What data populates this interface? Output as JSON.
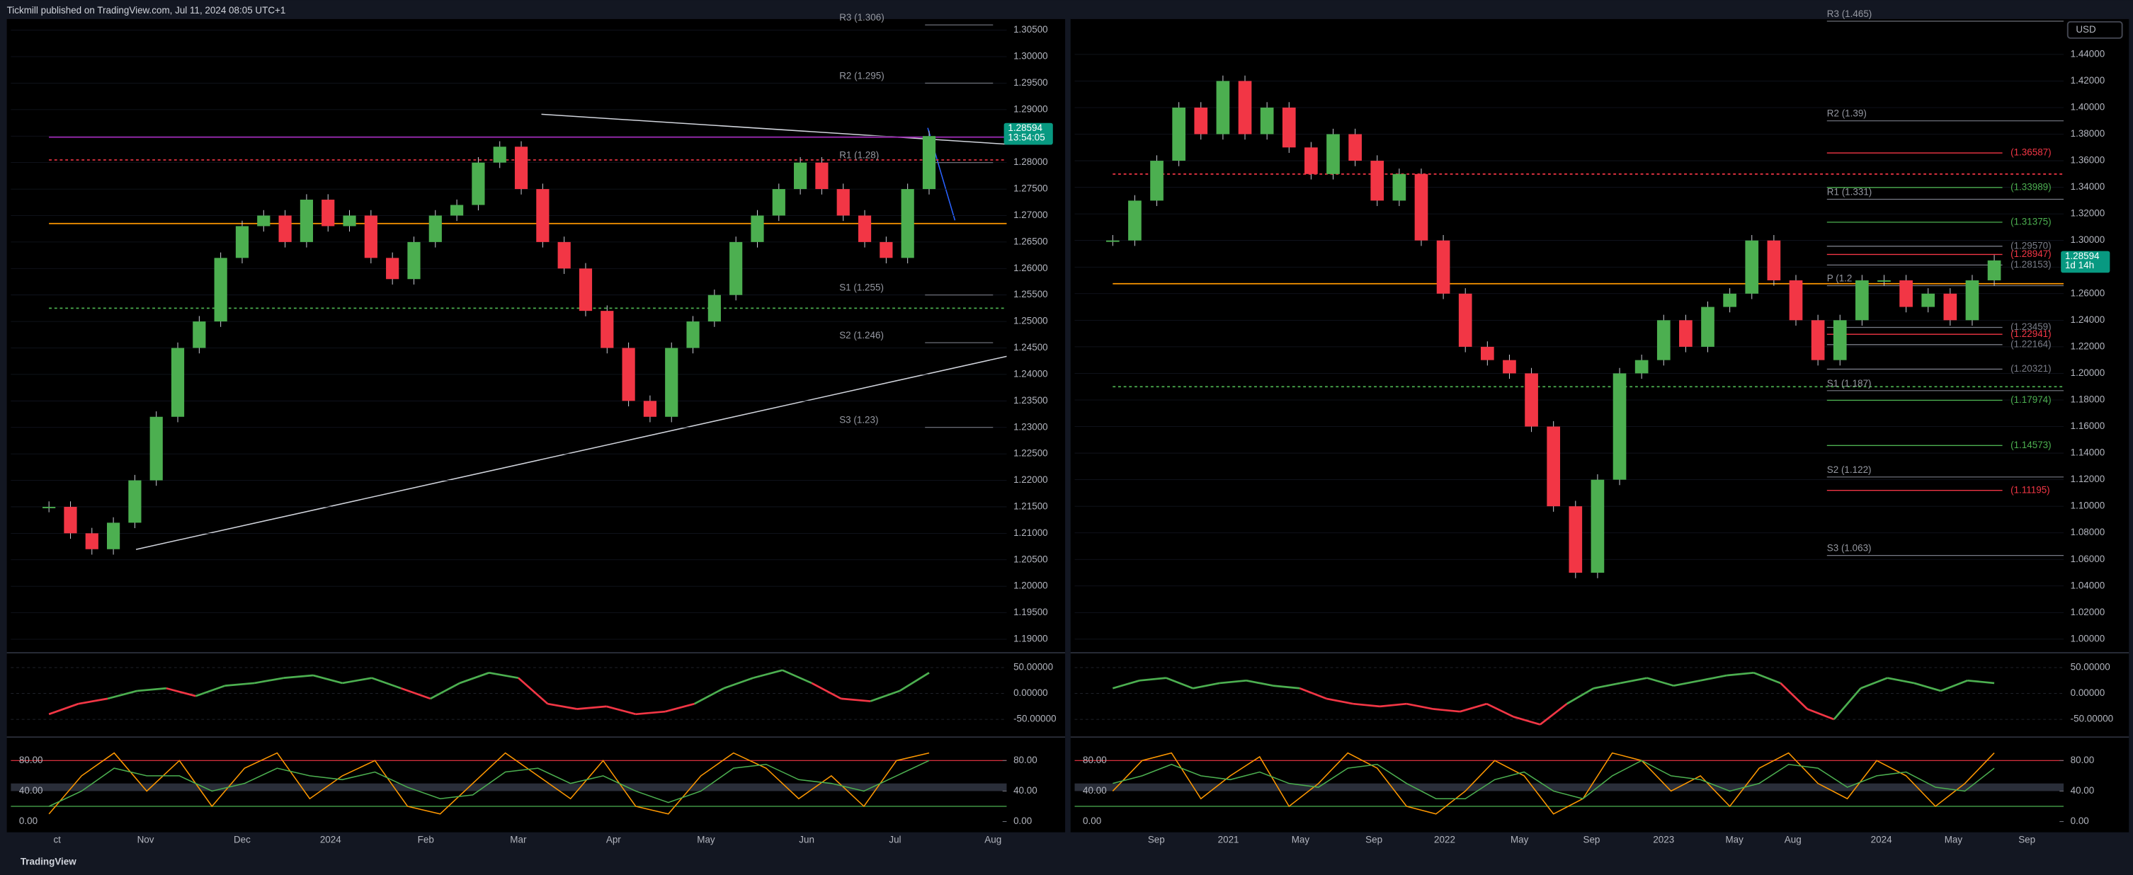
{
  "header": {
    "text": "Tickmill published on TradingView.com, Jul 11, 2024 08:05 UTC+1"
  },
  "footer": {
    "text": "TradingView"
  },
  "currency": "USD",
  "panels": [
    {
      "ylim": [
        1.1877,
        1.3071
      ],
      "yticks": [
        {
          "value": 1.305,
          "label": "1.30500"
        },
        {
          "value": 1.3,
          "label": "1.30000"
        },
        {
          "value": 1.295,
          "label": "1.29500"
        },
        {
          "value": 1.29,
          "label": "1.29000"
        },
        {
          "value": 1.285,
          "label": "1.28500"
        },
        {
          "value": 1.28,
          "label": "1.28000"
        },
        {
          "value": 1.275,
          "label": "1.27500"
        },
        {
          "value": 1.27,
          "label": "1.27000"
        },
        {
          "value": 1.265,
          "label": "1.26500"
        },
        {
          "value": 1.26,
          "label": "1.26000"
        },
        {
          "value": 1.255,
          "label": "1.25500"
        },
        {
          "value": 1.25,
          "label": "1.25000"
        },
        {
          "value": 1.245,
          "label": "1.24500"
        },
        {
          "value": 1.24,
          "label": "1.24000"
        },
        {
          "value": 1.235,
          "label": "1.23500"
        },
        {
          "value": 1.23,
          "label": "1.23000"
        },
        {
          "value": 1.225,
          "label": "1.22500"
        },
        {
          "value": 1.22,
          "label": "1.22000"
        },
        {
          "value": 1.215,
          "label": "1.21500"
        },
        {
          "value": 1.21,
          "label": "1.21000"
        },
        {
          "value": 1.205,
          "label": "1.20500"
        },
        {
          "value": 1.2,
          "label": "1.20000"
        },
        {
          "value": 1.195,
          "label": "1.19500"
        },
        {
          "value": 1.19,
          "label": "1.19000"
        }
      ],
      "time_labels": [
        "ct",
        "Nov",
        "Dec",
        "2024",
        "Feb",
        "Mar",
        "Apr",
        "May",
        "Jun",
        "Jul",
        "Aug"
      ],
      "pivots": [
        {
          "value": 1.306,
          "label": "R3 (1.306)"
        },
        {
          "value": 1.295,
          "label": "R2 (1.295)"
        },
        {
          "value": 1.28,
          "label": "R1 (1.28)"
        },
        {
          "value": 1.255,
          "label": "S1 (1.255)"
        },
        {
          "value": 1.246,
          "label": "S2 (1.246)"
        },
        {
          "value": 1.23,
          "label": "S3 (1.23)"
        }
      ],
      "levels": [
        {
          "value": 1.2805,
          "color": "#f23645",
          "dash": true
        },
        {
          "value": 1.2685,
          "color": "#ff9800",
          "dash": false
        },
        {
          "value": 1.2525,
          "color": "#4caf50",
          "dash": true
        },
        {
          "value": 1.2848,
          "color": "#9c27b0",
          "dash": false
        }
      ],
      "price_tag": {
        "value": 1.28594,
        "time": "13:54:05"
      },
      "closes": [
        1.215,
        1.21,
        1.207,
        1.212,
        1.22,
        1.232,
        1.245,
        1.25,
        1.262,
        1.268,
        1.27,
        1.265,
        1.273,
        1.268,
        1.27,
        1.262,
        1.258,
        1.265,
        1.27,
        1.272,
        1.28,
        1.283,
        1.275,
        1.265,
        1.26,
        1.252,
        1.245,
        1.235,
        1.232,
        1.245,
        1.25,
        1.255,
        1.265,
        1.27,
        1.275,
        1.28,
        1.275,
        1.27,
        1.265,
        1.262,
        1.275,
        1.285
      ],
      "momentum": {
        "ylim": [
          -79,
          76
        ],
        "yticks": [
          {
            "value": 50,
            "label": "50.00000"
          },
          {
            "value": 0,
            "label": "0.00000"
          },
          {
            "value": -50,
            "label": "-50.00000"
          }
        ],
        "values": [
          -40,
          -20,
          -10,
          5,
          10,
          -5,
          15,
          20,
          30,
          35,
          20,
          30,
          10,
          -10,
          20,
          40,
          30,
          -20,
          -30,
          -25,
          -40,
          -35,
          -20,
          10,
          30,
          45,
          20,
          -10,
          -15,
          5,
          40
        ]
      },
      "stoch": {
        "ylim": [
          -14,
          109
        ],
        "yticks": [
          {
            "value": 80,
            "label": "80.00"
          },
          {
            "value": 40,
            "label": "40.00"
          },
          {
            "value": 0,
            "label": "0.00"
          }
        ],
        "k": [
          10,
          60,
          90,
          40,
          80,
          20,
          70,
          90,
          30,
          60,
          80,
          20,
          10,
          50,
          90,
          60,
          30,
          80,
          20,
          10,
          60,
          90,
          70,
          30,
          60,
          20,
          80,
          90
        ],
        "d": [
          20,
          40,
          70,
          60,
          60,
          40,
          50,
          70,
          60,
          55,
          65,
          45,
          30,
          35,
          65,
          70,
          50,
          60,
          40,
          25,
          40,
          70,
          75,
          55,
          50,
          40,
          60,
          80
        ]
      }
    },
    {
      "ylim": [
        0.9908,
        1.4666
      ],
      "yticks": [
        {
          "value": 1.44,
          "label": "1.44000"
        },
        {
          "value": 1.42,
          "label": "1.42000"
        },
        {
          "value": 1.4,
          "label": "1.40000"
        },
        {
          "value": 1.38,
          "label": "1.38000"
        },
        {
          "value": 1.36,
          "label": "1.36000"
        },
        {
          "value": 1.34,
          "label": "1.34000"
        },
        {
          "value": 1.32,
          "label": "1.32000"
        },
        {
          "value": 1.3,
          "label": "1.30000"
        },
        {
          "value": 1.28,
          "label": "1.28000"
        },
        {
          "value": 1.26,
          "label": "1.26000"
        },
        {
          "value": 1.24,
          "label": "1.24000"
        },
        {
          "value": 1.22,
          "label": "1.22000"
        },
        {
          "value": 1.2,
          "label": "1.20000"
        },
        {
          "value": 1.18,
          "label": "1.18000"
        },
        {
          "value": 1.16,
          "label": "1.16000"
        },
        {
          "value": 1.14,
          "label": "1.14000"
        },
        {
          "value": 1.12,
          "label": "1.12000"
        },
        {
          "value": 1.1,
          "label": "1.10000"
        },
        {
          "value": 1.08,
          "label": "1.08000"
        },
        {
          "value": 1.06,
          "label": "1.06000"
        },
        {
          "value": 1.04,
          "label": "1.04000"
        },
        {
          "value": 1.02,
          "label": "1.02000"
        },
        {
          "value": 1.0,
          "label": "1.00000"
        }
      ],
      "time_labels": [
        "Sep",
        "2021",
        "May",
        "Sep",
        "2022",
        "May",
        "Sep",
        "2023",
        "May",
        "Aug",
        "2024",
        "May",
        "Sep"
      ],
      "pivots": [
        {
          "value": 1.465,
          "label": "R3 (1.465)"
        },
        {
          "value": 1.39,
          "label": "R2 (1.39)"
        },
        {
          "value": 1.331,
          "label": "R1 (1.331)"
        },
        {
          "value": 1.266,
          "label": "P (1.2"
        },
        {
          "value": 1.187,
          "label": "S1 (1.187)"
        },
        {
          "value": 1.122,
          "label": "S2 (1.122)"
        },
        {
          "value": 1.063,
          "label": "S3 (1.063)"
        }
      ],
      "marked_levels": [
        {
          "value": 1.36587,
          "label": "(1.36587)",
          "color": "#f23645"
        },
        {
          "value": 1.33989,
          "label": "(1.33989)",
          "color": "#4caf50"
        },
        {
          "value": 1.31375,
          "label": "(1.31375)",
          "color": "#4caf50"
        },
        {
          "value": 1.2957,
          "label": "(1.29570)",
          "color": "#787b86"
        },
        {
          "value": 1.28947,
          "label": "(1.28947)",
          "color": "#f23645"
        },
        {
          "value": 1.28153,
          "label": "(1.28153)",
          "color": "#787b86"
        },
        {
          "value": 1.23459,
          "label": "(1.23459)",
          "color": "#787b86"
        },
        {
          "value": 1.22941,
          "label": "(1.22941)",
          "color": "#f23645"
        },
        {
          "value": 1.22164,
          "label": "(1.22164)",
          "color": "#787b86"
        },
        {
          "value": 1.20321,
          "label": "(1.20321)",
          "color": "#787b86"
        },
        {
          "value": 1.17974,
          "label": "(1.17974)",
          "color": "#4caf50"
        },
        {
          "value": 1.14573,
          "label": "(1.14573)",
          "color": "#4caf50"
        },
        {
          "value": 1.11195,
          "label": "(1.11195)",
          "color": "#f23645"
        }
      ],
      "levels": [
        {
          "value": 1.35,
          "color": "#f23645",
          "dash": true
        },
        {
          "value": 1.2675,
          "color": "#ff9800",
          "dash": false
        },
        {
          "value": 1.19,
          "color": "#4caf50",
          "dash": true
        }
      ],
      "price_tag": {
        "value": 1.28594,
        "time": "1d 14h"
      },
      "closes": [
        1.3,
        1.33,
        1.36,
        1.4,
        1.38,
        1.42,
        1.38,
        1.4,
        1.37,
        1.35,
        1.38,
        1.36,
        1.33,
        1.35,
        1.3,
        1.26,
        1.22,
        1.21,
        1.2,
        1.16,
        1.1,
        1.05,
        1.12,
        1.2,
        1.21,
        1.24,
        1.22,
        1.25,
        1.26,
        1.3,
        1.27,
        1.24,
        1.21,
        1.24,
        1.27,
        1.27,
        1.25,
        1.26,
        1.24,
        1.27,
        1.285
      ],
      "momentum": {
        "ylim": [
          -79,
          76
        ],
        "yticks": [
          {
            "value": 50,
            "label": "50.00000"
          },
          {
            "value": 0,
            "label": "0.00000"
          },
          {
            "value": -50,
            "label": "-50.00000"
          }
        ],
        "values": [
          10,
          25,
          30,
          10,
          20,
          25,
          15,
          10,
          -10,
          -20,
          -25,
          -20,
          -30,
          -35,
          -20,
          -45,
          -60,
          -20,
          10,
          20,
          30,
          15,
          25,
          35,
          40,
          20,
          -30,
          -50,
          10,
          30,
          20,
          5,
          25,
          20
        ]
      },
      "stoch": {
        "ylim": [
          -14,
          109
        ],
        "yticks": [
          {
            "value": 80,
            "label": "80.00"
          },
          {
            "value": 40,
            "label": "40.00"
          },
          {
            "value": 0,
            "label": "0.00"
          }
        ],
        "k": [
          40,
          80,
          90,
          30,
          60,
          85,
          20,
          50,
          90,
          70,
          20,
          10,
          40,
          80,
          60,
          10,
          30,
          90,
          80,
          40,
          60,
          20,
          70,
          90,
          50,
          30,
          80,
          60,
          20,
          50,
          90
        ],
        "d": [
          50,
          60,
          75,
          60,
          55,
          65,
          50,
          45,
          70,
          75,
          50,
          30,
          30,
          55,
          65,
          40,
          30,
          60,
          80,
          60,
          55,
          40,
          50,
          75,
          70,
          45,
          60,
          65,
          45,
          40,
          70
        ]
      }
    }
  ]
}
